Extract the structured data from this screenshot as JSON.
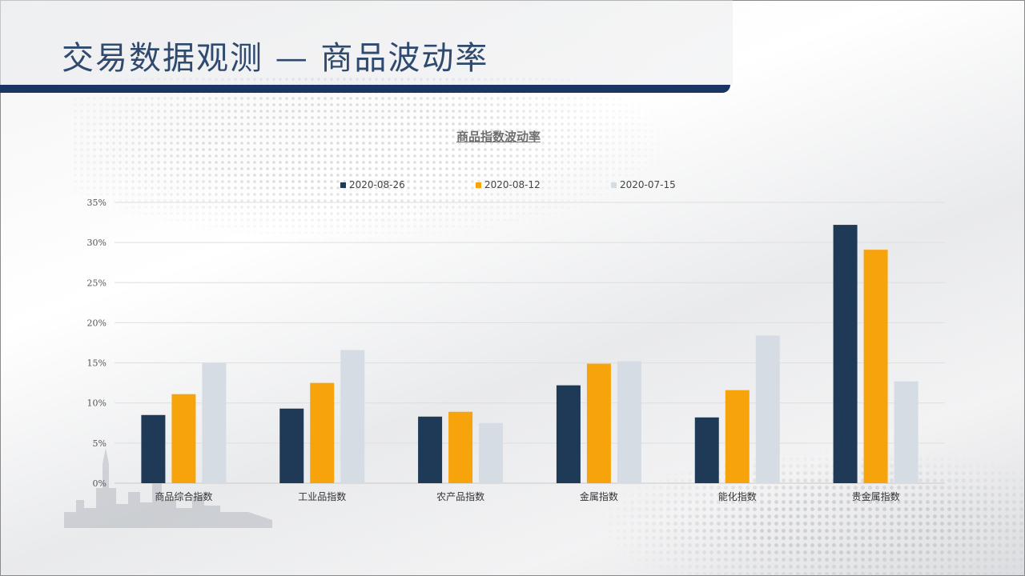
{
  "slide": {
    "title": "交易数据观测 — 商品波动率"
  },
  "chart_data": {
    "type": "bar",
    "title": "商品指数波动率",
    "categories": [
      "商品综合指数",
      "工业品指数",
      "农产品指数",
      "金属指数",
      "能化指数",
      "贵金属指数"
    ],
    "series": [
      {
        "name": "2020-08-26",
        "color": "#1e3a56",
        "values": [
          8.5,
          9.3,
          8.3,
          12.2,
          8.2,
          32.2
        ]
      },
      {
        "name": "2020-08-12",
        "color": "#f7a30c",
        "values": [
          11.1,
          12.5,
          8.9,
          14.9,
          11.6,
          29.1
        ]
      },
      {
        "name": "2020-07-15",
        "color": "#d5dce4",
        "values": [
          15.0,
          16.6,
          7.5,
          15.2,
          18.4,
          12.7
        ]
      }
    ],
    "ylim": [
      0,
      35
    ],
    "yticks": [
      "0%",
      "5%",
      "10%",
      "15%",
      "20%",
      "25%",
      "30%",
      "35%"
    ],
    "ytick_values": [
      0,
      5,
      10,
      15,
      20,
      25,
      30,
      35
    ],
    "grid": true,
    "legend_position": "top"
  }
}
